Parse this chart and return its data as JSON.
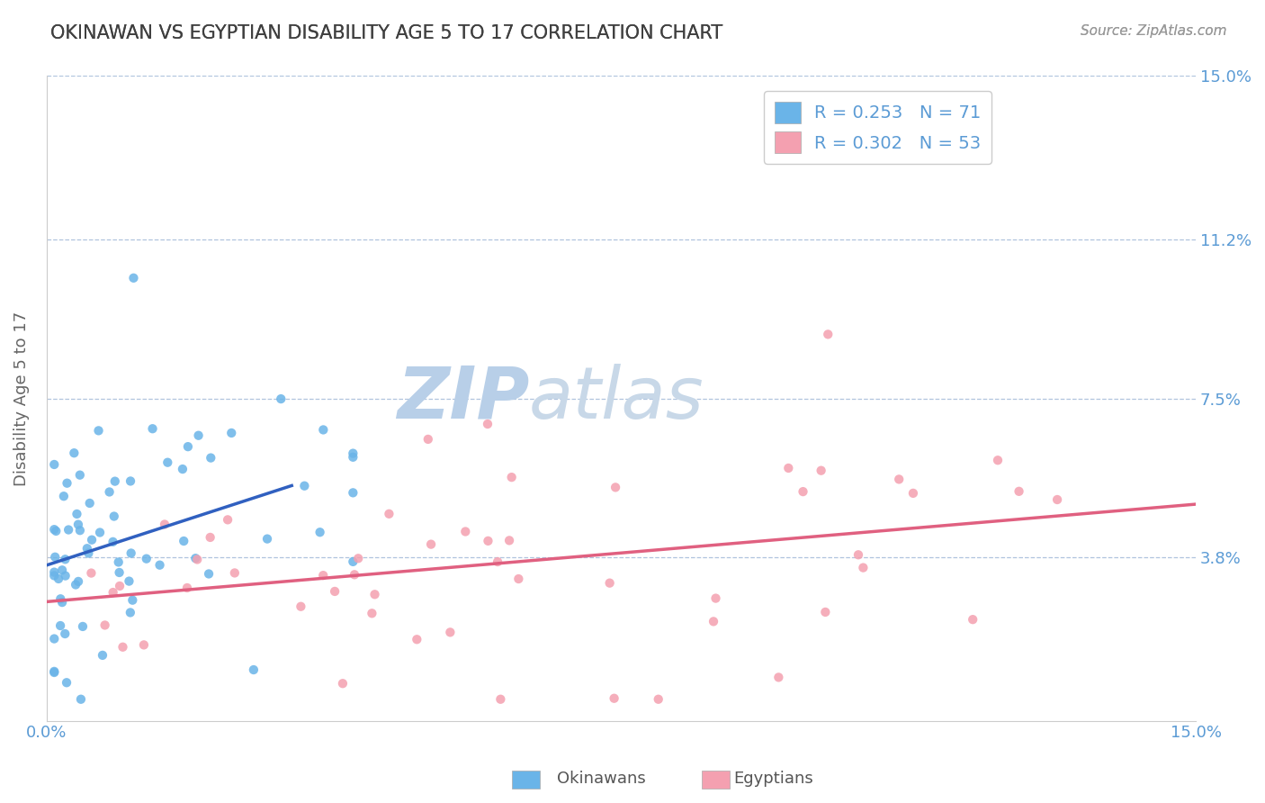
{
  "title": "OKINAWAN VS EGYPTIAN DISABILITY AGE 5 TO 17 CORRELATION CHART",
  "source_text": "Source: ZipAtlas.com",
  "ylabel": "Disability Age 5 to 17",
  "xlim": [
    0.0,
    0.15
  ],
  "ylim": [
    0.0,
    0.15
  ],
  "ytick_labels": [
    "3.8%",
    "7.5%",
    "11.2%",
    "15.0%"
  ],
  "ytick_positions": [
    0.038,
    0.075,
    0.112,
    0.15
  ],
  "legend_line1": "R = 0.253   N = 71",
  "legend_line2": "R = 0.302   N = 53",
  "watermark_part1": "ZIP",
  "watermark_part2": "atlas",
  "watermark_color1": "#b8cfe8",
  "watermark_color2": "#c8d8e8",
  "okinawan_color": "#6ab4e8",
  "egyptian_color": "#f4a0b0",
  "okinawan_trend_color": "#3060c0",
  "egyptian_trend_color": "#e06080",
  "r_okinawan": 0.253,
  "n_okinawan": 71,
  "r_egyptian": 0.302,
  "n_egyptian": 53,
  "title_color": "#404040",
  "axis_color": "#5b9bd5",
  "grid_color": "#b0c4de",
  "background_color": "#ffffff"
}
